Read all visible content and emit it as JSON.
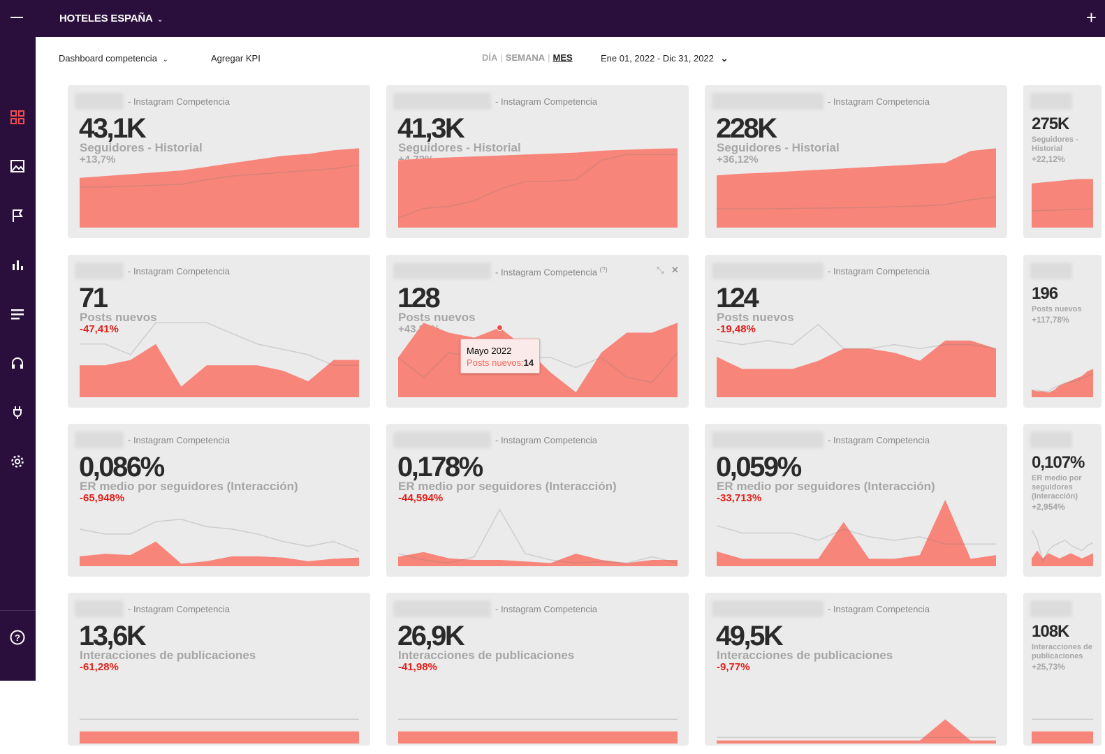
{
  "header": {
    "brand": "HOTELES ESPAÑA",
    "brand_chevron": "⌄",
    "plus": "+"
  },
  "toolbar": {
    "dashboard": "Dashboard competencia",
    "dashboard_chevron": "⌄",
    "add_kpi": "Agregar KPI",
    "period": {
      "day": "DÍA",
      "week": "SEMANA",
      "month": "MES",
      "active": "MES"
    },
    "date_range": "Ene 01, 2022 - Dic 31, 2022",
    "date_chevron": "⌄"
  },
  "sidebar": {
    "icons": [
      "grid-icon",
      "image-icon",
      "flag-icon",
      "bar-chart-icon",
      "list-icon",
      "headset-icon",
      "plug-icon",
      "gear-icon"
    ],
    "help": "help-icon",
    "active": "grid-icon"
  },
  "colors": {
    "area": "#f8857a",
    "line": "#d4d4d4",
    "negative": "#e0201b",
    "positive": "#a6a6a6",
    "accent": "#ef4d4d",
    "sidebar": "#2a0f3c"
  },
  "cards": [
    {
      "source": "- Instagram Competencia",
      "value": "43,1K",
      "kpi": "Seguidores - Historial",
      "change": "+13,7%",
      "area": [
        27,
        28,
        29,
        30,
        31,
        33,
        35,
        37,
        39,
        40,
        42,
        43.1
      ],
      "line": [
        22,
        22,
        22.5,
        23,
        23.5,
        26,
        28,
        29,
        30,
        31,
        32,
        34
      ]
    },
    {
      "source": "- Instagram Competencia",
      "value": "41,3K",
      "kpi": "Seguidores - Historial",
      "change": "+4,72%",
      "area": [
        35,
        36,
        36.5,
        37,
        37.5,
        38,
        38.5,
        39,
        40,
        40.5,
        41,
        41.3
      ],
      "line": [
        5,
        10,
        11,
        14,
        20,
        24,
        24,
        25,
        35,
        38,
        38,
        38
      ]
    },
    {
      "source": "- Instagram Competencia",
      "value": "228K",
      "kpi": "Seguidores - Historial",
      "change": "+36,12%",
      "area": [
        150,
        155,
        158,
        162,
        166,
        170,
        174,
        178,
        182,
        186,
        220,
        228
      ],
      "line": [
        54,
        54,
        54,
        55,
        56,
        57,
        58,
        60,
        62,
        66,
        80,
        88
      ]
    },
    {
      "source": "- Instagram Competencia",
      "value": "275K",
      "kpi": "Seguidores - Historial",
      "change": "+22,12%",
      "area": [
        250,
        253,
        256,
        259,
        262,
        265,
        268,
        271,
        274,
        275,
        275,
        275
      ],
      "line": [
        95,
        96,
        97,
        98,
        99,
        100,
        101,
        102,
        103,
        104,
        105,
        106
      ]
    },
    {
      "source": "- Instagram Competencia",
      "value": "71",
      "kpi": "Posts nuevos",
      "change": "-47,41%",
      "area": [
        6,
        6,
        7,
        10,
        2,
        6,
        6,
        6,
        5,
        3,
        7,
        7
      ],
      "line": [
        10,
        10,
        8,
        14,
        14,
        14,
        12,
        10,
        9,
        8,
        6,
        6
      ]
    },
    {
      "source": "- Instagram Competencia",
      "value": "128",
      "kpi": "Posts nuevos",
      "change": "+43,82%",
      "help": "(?)",
      "area": [
        8,
        15,
        13,
        12,
        14,
        10,
        5,
        1,
        9,
        13,
        13,
        15
      ],
      "line": [
        8,
        4,
        9,
        8,
        9,
        8,
        8,
        6,
        8,
        4,
        3,
        9
      ],
      "tooltip": {
        "month": "Mayo 2022",
        "label": "Posts nuevos:",
        "value": "14",
        "index": 4
      }
    },
    {
      "source": "- Instagram Competencia",
      "value": "124",
      "kpi": "Posts nuevos",
      "change": "-19,48%",
      "area": [
        10,
        7,
        7,
        7,
        9,
        12,
        12,
        11,
        9,
        14,
        14,
        12
      ],
      "line": [
        14,
        13,
        14,
        13,
        18,
        12,
        12,
        13,
        12,
        13,
        13,
        12
      ]
    },
    {
      "source": "- Instagram Competencia",
      "value": "196",
      "kpi": "Posts nuevos",
      "change": "+117,78%",
      "area": [
        6,
        5,
        5,
        4,
        6,
        10,
        12,
        14,
        16,
        18,
        22,
        24
      ],
      "line": [
        6,
        6,
        5,
        5,
        8,
        10,
        12,
        13,
        14,
        16,
        18,
        20
      ]
    },
    {
      "source": "- Instagram Competencia",
      "value": "0,086%",
      "kpi": "ER medio por seguidores (Interacción)",
      "change": "-65,948%",
      "area": [
        0.04,
        0.05,
        0.045,
        0.1,
        0.01,
        0.02,
        0.04,
        0.04,
        0.035,
        0.02,
        0.03,
        0.035
      ],
      "line": [
        0.15,
        0.13,
        0.13,
        0.18,
        0.19,
        0.16,
        0.15,
        0.13,
        0.1,
        0.08,
        0.1,
        0.06
      ]
    },
    {
      "source": "- Instagram Competencia",
      "value": "0,178%",
      "kpi": "ER medio por seguidores (Interacción)",
      "change": "-44,594%",
      "area": [
        0.03,
        0.045,
        0.025,
        0.02,
        0.02,
        0.015,
        0.01,
        0.04,
        0.02,
        0.01,
        0.02,
        0.02
      ],
      "line": [
        0.04,
        0.02,
        0.01,
        0.03,
        0.18,
        0.04,
        0.02,
        0.01,
        0.015,
        0.01,
        0.03,
        0.01
      ]
    },
    {
      "source": "- Instagram Competencia",
      "value": "0,059%",
      "kpi": "ER medio por seguidores (Interacción)",
      "change": "-33,713%",
      "area": [
        0.04,
        0.02,
        0.02,
        0.02,
        0.02,
        0.12,
        0.02,
        0.02,
        0.03,
        0.18,
        0.02,
        0.03
      ],
      "line": [
        0.11,
        0.09,
        0.09,
        0.09,
        0.07,
        0.1,
        0.08,
        0.07,
        0.08,
        0.06,
        0.06,
        0.06
      ]
    },
    {
      "source": "- Instagram Competencia",
      "value": "0,107%",
      "kpi": "ER medio por seguidores (Interacción)",
      "change": "+2,954%",
      "area": [
        0.03,
        0.06,
        0.03,
        0.05,
        0.04,
        0.03,
        0.04,
        0.05,
        0.04,
        0.03,
        0.04,
        0.05
      ],
      "line": [
        0.14,
        0.1,
        0.02,
        0.06,
        0.08,
        0.09,
        0.1,
        0.08,
        0.07,
        0.06,
        0.08,
        0.09
      ]
    },
    {
      "source": "- Instagram Competencia",
      "value": "13,6K",
      "kpi": "Interacciones de publicaciones",
      "change": "-61,28%",
      "area": [
        1,
        1,
        1,
        1,
        1,
        1,
        1,
        1,
        1,
        1,
        1,
        1
      ],
      "line": [
        2,
        2,
        2,
        2,
        2,
        2,
        2,
        2,
        2,
        2,
        2,
        2
      ]
    },
    {
      "source": "- Instagram Competencia",
      "value": "26,9K",
      "kpi": "Interacciones de publicaciones",
      "change": "-41,98%",
      "area": [
        1,
        1,
        1,
        1,
        1,
        1,
        1,
        1,
        1,
        1,
        1,
        1
      ],
      "line": [
        2,
        2,
        2,
        2,
        2,
        2,
        2,
        2,
        2,
        2,
        2,
        2
      ]
    },
    {
      "source": "- Instagram Competencia",
      "value": "49,5K",
      "kpi": "Interacciones de publicaciones",
      "change": "-9,77%",
      "area": [
        1,
        1,
        1,
        1,
        1,
        1,
        1,
        1,
        1,
        8,
        1,
        1
      ],
      "line": [
        2,
        2,
        2,
        2,
        2,
        2,
        2,
        2,
        2,
        2,
        2,
        2
      ]
    },
    {
      "source": "- Instagram Competencia",
      "value": "108K",
      "kpi": "Interacciones de publicaciones",
      "change": "+25,73%",
      "area": [
        1,
        1,
        1,
        1,
        1,
        1,
        1,
        1,
        1,
        1,
        1,
        1
      ],
      "line": [
        2,
        2,
        2,
        2,
        2,
        2,
        2,
        2,
        2,
        2,
        2,
        2
      ]
    }
  ]
}
